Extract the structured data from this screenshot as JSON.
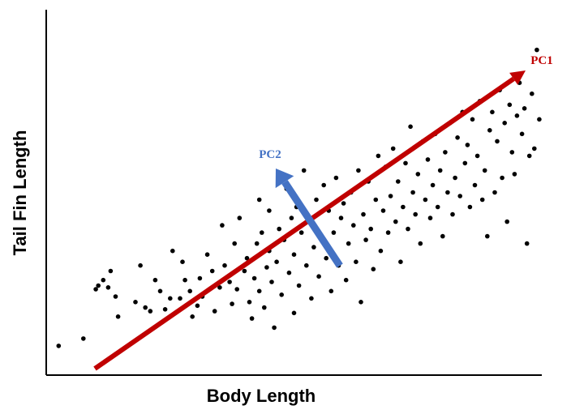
{
  "chart_data": {
    "type": "scatter",
    "title": "",
    "xlabel": "Body Length",
    "ylabel": "Tail Fin Length",
    "xlim": [
      0,
      10
    ],
    "ylim": [
      0,
      10
    ],
    "grid": false,
    "tick_labels": false,
    "point_color": "#000000",
    "points": [
      [
        0.25,
        0.8
      ],
      [
        0.75,
        1.0
      ],
      [
        1.0,
        2.35
      ],
      [
        1.05,
        2.45
      ],
      [
        1.15,
        2.6
      ],
      [
        1.3,
        2.85
      ],
      [
        1.25,
        2.4
      ],
      [
        1.4,
        2.15
      ],
      [
        1.45,
        1.6
      ],
      [
        1.8,
        2.0
      ],
      [
        1.9,
        3.0
      ],
      [
        2.0,
        1.85
      ],
      [
        2.1,
        1.75
      ],
      [
        2.2,
        2.6
      ],
      [
        2.3,
        2.3
      ],
      [
        2.4,
        1.8
      ],
      [
        2.5,
        2.1
      ],
      [
        2.55,
        3.4
      ],
      [
        2.7,
        2.1
      ],
      [
        2.75,
        3.1
      ],
      [
        2.8,
        2.6
      ],
      [
        2.9,
        2.3
      ],
      [
        2.95,
        1.6
      ],
      [
        3.05,
        1.9
      ],
      [
        3.1,
        2.65
      ],
      [
        3.15,
        2.15
      ],
      [
        3.25,
        3.3
      ],
      [
        3.35,
        2.85
      ],
      [
        3.4,
        1.75
      ],
      [
        3.5,
        2.4
      ],
      [
        3.55,
        4.1
      ],
      [
        3.6,
        3.0
      ],
      [
        3.7,
        2.55
      ],
      [
        3.75,
        1.95
      ],
      [
        3.8,
        3.6
      ],
      [
        3.85,
        2.35
      ],
      [
        3.9,
        4.3
      ],
      [
        4.0,
        2.85
      ],
      [
        4.05,
        3.2
      ],
      [
        4.1,
        2.0
      ],
      [
        4.15,
        1.55
      ],
      [
        4.2,
        2.65
      ],
      [
        4.25,
        3.6
      ],
      [
        4.3,
        4.8
      ],
      [
        4.3,
        2.3
      ],
      [
        4.35,
        3.9
      ],
      [
        4.4,
        1.85
      ],
      [
        4.45,
        2.95
      ],
      [
        4.5,
        3.4
      ],
      [
        4.5,
        4.5
      ],
      [
        4.55,
        2.55
      ],
      [
        4.6,
        1.3
      ],
      [
        4.65,
        3.1
      ],
      [
        4.7,
        4.0
      ],
      [
        4.75,
        2.2
      ],
      [
        4.8,
        3.7
      ],
      [
        4.85,
        5.1
      ],
      [
        4.9,
        2.8
      ],
      [
        4.95,
        4.3
      ],
      [
        5.0,
        3.3
      ],
      [
        5.0,
        1.7
      ],
      [
        5.05,
        4.6
      ],
      [
        5.1,
        2.45
      ],
      [
        5.15,
        3.9
      ],
      [
        5.2,
        5.6
      ],
      [
        5.25,
        3.0
      ],
      [
        5.3,
        4.2
      ],
      [
        5.35,
        2.1
      ],
      [
        5.4,
        3.5
      ],
      [
        5.45,
        4.8
      ],
      [
        5.5,
        2.7
      ],
      [
        5.55,
        3.8
      ],
      [
        5.6,
        5.2
      ],
      [
        5.65,
        3.2
      ],
      [
        5.7,
        4.5
      ],
      [
        5.75,
        2.3
      ],
      [
        5.8,
        3.9
      ],
      [
        5.85,
        5.4
      ],
      [
        5.9,
        3.0
      ],
      [
        5.95,
        4.3
      ],
      [
        6.0,
        4.7
      ],
      [
        6.05,
        2.6
      ],
      [
        6.1,
        3.6
      ],
      [
        6.15,
        5.0
      ],
      [
        6.2,
        4.1
      ],
      [
        6.25,
        3.1
      ],
      [
        6.3,
        5.6
      ],
      [
        6.35,
        2.0
      ],
      [
        6.4,
        4.4
      ],
      [
        6.45,
        3.7
      ],
      [
        6.5,
        5.3
      ],
      [
        6.55,
        4.0
      ],
      [
        6.6,
        2.9
      ],
      [
        6.65,
        4.8
      ],
      [
        6.7,
        6.0
      ],
      [
        6.75,
        3.4
      ],
      [
        6.8,
        4.5
      ],
      [
        6.85,
        5.7
      ],
      [
        6.9,
        3.9
      ],
      [
        6.95,
        4.9
      ],
      [
        7.0,
        6.2
      ],
      [
        7.05,
        4.2
      ],
      [
        7.1,
        5.3
      ],
      [
        7.15,
        3.1
      ],
      [
        7.2,
        4.6
      ],
      [
        7.25,
        5.8
      ],
      [
        7.3,
        4.0
      ],
      [
        7.35,
        6.8
      ],
      [
        7.4,
        5.0
      ],
      [
        7.45,
        4.4
      ],
      [
        7.5,
        5.5
      ],
      [
        7.55,
        3.6
      ],
      [
        7.6,
        6.4
      ],
      [
        7.65,
        4.8
      ],
      [
        7.7,
        5.9
      ],
      [
        7.75,
        4.3
      ],
      [
        7.8,
        5.2
      ],
      [
        7.85,
        6.6
      ],
      [
        7.9,
        4.6
      ],
      [
        7.95,
        5.6
      ],
      [
        8.0,
        3.8
      ],
      [
        8.05,
        6.1
      ],
      [
        8.1,
        5.0
      ],
      [
        8.15,
        6.9
      ],
      [
        8.2,
        4.4
      ],
      [
        8.25,
        5.4
      ],
      [
        8.3,
        6.5
      ],
      [
        8.35,
        4.9
      ],
      [
        8.4,
        7.2
      ],
      [
        8.45,
        5.8
      ],
      [
        8.5,
        6.3
      ],
      [
        8.55,
        4.6
      ],
      [
        8.6,
        7.0
      ],
      [
        8.65,
        5.2
      ],
      [
        8.7,
        6.0
      ],
      [
        8.75,
        7.5
      ],
      [
        8.8,
        4.8
      ],
      [
        8.85,
        5.6
      ],
      [
        8.9,
        3.8
      ],
      [
        8.95,
        6.7
      ],
      [
        9.0,
        7.2
      ],
      [
        9.05,
        5.0
      ],
      [
        9.1,
        6.4
      ],
      [
        9.15,
        7.8
      ],
      [
        9.2,
        5.4
      ],
      [
        9.25,
        6.9
      ],
      [
        9.3,
        4.2
      ],
      [
        9.35,
        7.4
      ],
      [
        9.4,
        6.1
      ],
      [
        9.45,
        5.5
      ],
      [
        9.5,
        7.1
      ],
      [
        9.55,
        8.0
      ],
      [
        9.6,
        6.6
      ],
      [
        9.65,
        7.3
      ],
      [
        9.7,
        3.6
      ],
      [
        9.75,
        6.0
      ],
      [
        9.8,
        7.7
      ],
      [
        9.85,
        6.2
      ],
      [
        9.9,
        8.9
      ],
      [
        9.95,
        7.0
      ]
    ],
    "vectors": [
      {
        "label": "PC1",
        "color": "#c00000"
      },
      {
        "label": "PC2",
        "color": "#4472c4"
      }
    ]
  }
}
